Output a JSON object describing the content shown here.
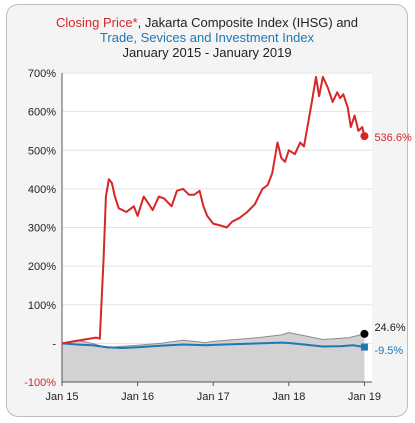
{
  "chart_data": {
    "type": "line",
    "title": {
      "line1_red": "Closing Price*",
      "line1_rest": ", Jakarta Composite Index (IHSG) and",
      "line2": "Trade, Sevices and Investment Index",
      "line3": "January 2015 - January 2019"
    },
    "xlabel": "",
    "ylabel": "",
    "x_ticks": [
      "Jan 15",
      "Jan 16",
      "Jan 17",
      "Jan 18",
      "Jan 19"
    ],
    "y_ticks": [
      "700%",
      "600%",
      "500%",
      "400%",
      "300%",
      "200%",
      "100%",
      "-",
      "-100%"
    ],
    "ylim": [
      -100,
      700
    ],
    "grid": true,
    "series": [
      {
        "name": "Closing Price*",
        "color": "#d62728",
        "end_label": "536.6%",
        "points": [
          [
            2015.0,
            0
          ],
          [
            2015.15,
            5
          ],
          [
            2015.3,
            10
          ],
          [
            2015.45,
            15
          ],
          [
            2015.5,
            12
          ],
          [
            2015.55,
            220
          ],
          [
            2015.58,
            380
          ],
          [
            2015.62,
            425
          ],
          [
            2015.66,
            415
          ],
          [
            2015.7,
            380
          ],
          [
            2015.75,
            350
          ],
          [
            2015.85,
            340
          ],
          [
            2015.95,
            355
          ],
          [
            2016.0,
            330
          ],
          [
            2016.08,
            380
          ],
          [
            2016.15,
            360
          ],
          [
            2016.2,
            345
          ],
          [
            2016.28,
            380
          ],
          [
            2016.35,
            375
          ],
          [
            2016.45,
            355
          ],
          [
            2016.52,
            395
          ],
          [
            2016.6,
            400
          ],
          [
            2016.68,
            385
          ],
          [
            2016.75,
            385
          ],
          [
            2016.82,
            395
          ],
          [
            2016.87,
            355
          ],
          [
            2016.92,
            330
          ],
          [
            2017.0,
            310
          ],
          [
            2017.1,
            305
          ],
          [
            2017.18,
            300
          ],
          [
            2017.25,
            315
          ],
          [
            2017.35,
            325
          ],
          [
            2017.45,
            340
          ],
          [
            2017.55,
            360
          ],
          [
            2017.65,
            400
          ],
          [
            2017.72,
            410
          ],
          [
            2017.78,
            440
          ],
          [
            2017.85,
            520
          ],
          [
            2017.9,
            480
          ],
          [
            2017.95,
            470
          ],
          [
            2018.0,
            500
          ],
          [
            2018.08,
            490
          ],
          [
            2018.15,
            520
          ],
          [
            2018.2,
            510
          ],
          [
            2018.3,
            620
          ],
          [
            2018.36,
            690
          ],
          [
            2018.4,
            640
          ],
          [
            2018.45,
            690
          ],
          [
            2018.52,
            660
          ],
          [
            2018.58,
            625
          ],
          [
            2018.64,
            650
          ],
          [
            2018.68,
            635
          ],
          [
            2018.72,
            645
          ],
          [
            2018.78,
            610
          ],
          [
            2018.82,
            560
          ],
          [
            2018.87,
            590
          ],
          [
            2018.92,
            550
          ],
          [
            2018.97,
            560
          ],
          [
            2019.0,
            536.6
          ]
        ]
      },
      {
        "name": "Jakarta Composite Index (IHSG)",
        "color": "#8c8c8c",
        "end_label": "24.6%",
        "points": [
          [
            2015.0,
            0
          ],
          [
            2015.2,
            8
          ],
          [
            2015.4,
            0
          ],
          [
            2015.6,
            -12
          ],
          [
            2015.75,
            -8
          ],
          [
            2016.0,
            -5
          ],
          [
            2016.3,
            0
          ],
          [
            2016.6,
            8
          ],
          [
            2016.9,
            2
          ],
          [
            2017.0,
            5
          ],
          [
            2017.3,
            10
          ],
          [
            2017.6,
            15
          ],
          [
            2017.9,
            22
          ],
          [
            2018.0,
            28
          ],
          [
            2018.2,
            20
          ],
          [
            2018.45,
            10
          ],
          [
            2018.6,
            12
          ],
          [
            2018.8,
            15
          ],
          [
            2019.0,
            24.6
          ]
        ]
      },
      {
        "name": "Trade, Sevices and Investment Index",
        "color": "#1f77b4",
        "end_label": "-9.5%",
        "points": [
          [
            2015.0,
            0
          ],
          [
            2015.2,
            -3
          ],
          [
            2015.4,
            -5
          ],
          [
            2015.6,
            -10
          ],
          [
            2015.8,
            -12
          ],
          [
            2016.0,
            -10
          ],
          [
            2016.3,
            -6
          ],
          [
            2016.6,
            -3
          ],
          [
            2016.9,
            -5
          ],
          [
            2017.0,
            -4
          ],
          [
            2017.3,
            -2
          ],
          [
            2017.6,
            0
          ],
          [
            2017.9,
            2
          ],
          [
            2018.0,
            1
          ],
          [
            2018.2,
            -3
          ],
          [
            2018.45,
            -8
          ],
          [
            2018.7,
            -7
          ],
          [
            2018.85,
            -5
          ],
          [
            2019.0,
            -9.5
          ]
        ]
      }
    ],
    "x_range": [
      2015.0,
      2019.1
    ],
    "legend": "none"
  }
}
